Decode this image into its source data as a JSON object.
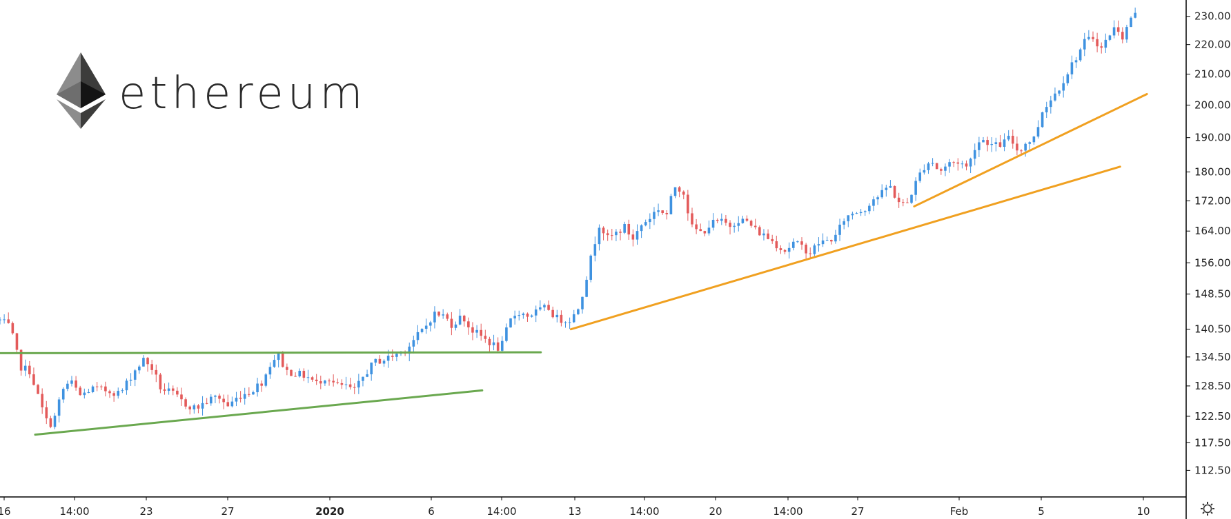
{
  "brand": {
    "wordmark": "ethereum",
    "logo_icon": "ethereum-diamond-icon"
  },
  "colors": {
    "up": "#3f92e0",
    "down": "#e35a5a",
    "support_green": "#6aa84f",
    "trend_orange": "#f0a020",
    "axis": "#000000",
    "text": "#222222"
  },
  "settings_icon": "gear-icon",
  "chart_data": {
    "type": "candlestick",
    "title": "",
    "scale": "log",
    "ylim": [
      108,
      236
    ],
    "x_ticks": [
      {
        "label": "16",
        "bold": false
      },
      {
        "label": "14:00",
        "bold": false
      },
      {
        "label": "23",
        "bold": false
      },
      {
        "label": "27",
        "bold": false
      },
      {
        "label": "2020",
        "bold": true
      },
      {
        "label": "6",
        "bold": false
      },
      {
        "label": "14:00",
        "bold": false
      },
      {
        "label": "13",
        "bold": false
      },
      {
        "label": "14:00",
        "bold": false
      },
      {
        "label": "20",
        "bold": false
      },
      {
        "label": "14:00",
        "bold": false
      },
      {
        "label": "27",
        "bold": false
      },
      {
        "label": "Feb",
        "bold": false
      },
      {
        "label": "5",
        "bold": false
      },
      {
        "label": "10",
        "bold": false
      }
    ],
    "y_ticks": [
      "230.00",
      "220.00",
      "210.00",
      "200.00",
      "190.00",
      "180.00",
      "172.00",
      "164.00",
      "156.00",
      "148.50",
      "140.50",
      "134.50",
      "128.50",
      "122.50",
      "117.50",
      "112.50"
    ],
    "price_path": [
      [
        0.0,
        142.5
      ],
      [
        0.6,
        141.0
      ],
      [
        1.2,
        132.5
      ],
      [
        1.8,
        131.5
      ],
      [
        2.4,
        125.0
      ],
      [
        2.9,
        120.5
      ],
      [
        3.3,
        122.5
      ],
      [
        3.7,
        127.5
      ],
      [
        4.2,
        129.5
      ],
      [
        4.8,
        126.5
      ],
      [
        5.5,
        128.0
      ],
      [
        6.5,
        127.5
      ],
      [
        7.2,
        127.0
      ],
      [
        8.0,
        131.5
      ],
      [
        8.6,
        134.0
      ],
      [
        9.1,
        132.0
      ],
      [
        9.6,
        128.0
      ],
      [
        10.3,
        127.0
      ],
      [
        11.0,
        125.0
      ],
      [
        11.7,
        124.0
      ],
      [
        12.4,
        125.5
      ],
      [
        13.0,
        126.5
      ],
      [
        13.6,
        124.5
      ],
      [
        14.3,
        126.5
      ],
      [
        15.0,
        127.5
      ],
      [
        15.7,
        129.5
      ],
      [
        16.2,
        133.5
      ],
      [
        16.6,
        135.0
      ],
      [
        17.1,
        131.5
      ],
      [
        17.7,
        131.0
      ],
      [
        18.3,
        130.5
      ],
      [
        18.9,
        129.0
      ],
      [
        19.5,
        130.5
      ],
      [
        20.1,
        128.5
      ],
      [
        20.6,
        128.5
      ],
      [
        21.2,
        127.5
      ],
      [
        21.8,
        131.0
      ],
      [
        22.4,
        133.5
      ],
      [
        23.0,
        134.0
      ],
      [
        23.6,
        135.0
      ],
      [
        24.2,
        136.0
      ],
      [
        24.8,
        138.5
      ],
      [
        25.4,
        141.0
      ],
      [
        25.9,
        144.0
      ],
      [
        26.5,
        143.5
      ],
      [
        27.0,
        141.5
      ],
      [
        27.6,
        143.5
      ],
      [
        28.1,
        140.5
      ],
      [
        28.7,
        139.0
      ],
      [
        29.3,
        137.5
      ],
      [
        29.9,
        136.0
      ],
      [
        30.4,
        142.0
      ],
      [
        30.9,
        144.5
      ],
      [
        31.5,
        143.5
      ],
      [
        32.1,
        144.5
      ],
      [
        32.7,
        145.5
      ],
      [
        33.2,
        143.0
      ],
      [
        33.7,
        142.5
      ],
      [
        34.2,
        143.0
      ],
      [
        34.6,
        146.0
      ],
      [
        35.0,
        152.0
      ],
      [
        35.4,
        159.0
      ],
      [
        35.8,
        166.0
      ],
      [
        36.3,
        162.0
      ],
      [
        36.8,
        163.5
      ],
      [
        37.3,
        165.0
      ],
      [
        37.8,
        162.0
      ],
      [
        38.3,
        165.5
      ],
      [
        38.8,
        167.5
      ],
      [
        39.3,
        170.0
      ],
      [
        39.8,
        168.0
      ],
      [
        40.3,
        176.0
      ],
      [
        40.8,
        175.0
      ],
      [
        41.3,
        165.0
      ],
      [
        41.9,
        163.5
      ],
      [
        42.5,
        166.0
      ],
      [
        43.0,
        166.5
      ],
      [
        43.6,
        165.5
      ],
      [
        44.1,
        167.0
      ],
      [
        44.6,
        166.5
      ],
      [
        45.2,
        164.0
      ],
      [
        45.8,
        162.5
      ],
      [
        46.4,
        160.5
      ],
      [
        46.9,
        159.0
      ],
      [
        47.4,
        161.0
      ],
      [
        47.9,
        160.0
      ],
      [
        48.4,
        158.5
      ],
      [
        48.9,
        161.0
      ],
      [
        49.4,
        161.5
      ],
      [
        49.9,
        162.5
      ],
      [
        50.4,
        167.0
      ],
      [
        51.0,
        169.0
      ],
      [
        51.6,
        169.5
      ],
      [
        52.1,
        172.5
      ],
      [
        52.6,
        173.5
      ],
      [
        53.1,
        176.5
      ],
      [
        53.6,
        172.0
      ],
      [
        54.1,
        170.5
      ],
      [
        54.6,
        176.0
      ],
      [
        55.1,
        181.0
      ],
      [
        55.6,
        183.5
      ],
      [
        56.1,
        180.0
      ],
      [
        56.7,
        182.5
      ],
      [
        57.3,
        183.0
      ],
      [
        57.8,
        181.0
      ],
      [
        58.3,
        188.5
      ],
      [
        58.8,
        189.5
      ],
      [
        59.3,
        187.5
      ],
      [
        59.8,
        188.0
      ],
      [
        60.3,
        190.0
      ],
      [
        60.8,
        186.0
      ],
      [
        61.3,
        188.5
      ],
      [
        61.8,
        190.0
      ],
      [
        62.3,
        199.0
      ],
      [
        62.8,
        202.0
      ],
      [
        63.3,
        206.0
      ],
      [
        63.8,
        211.0
      ],
      [
        64.3,
        216.0
      ],
      [
        64.8,
        221.0
      ],
      [
        65.3,
        222.5
      ],
      [
        65.8,
        218.5
      ],
      [
        66.3,
        224.0
      ],
      [
        66.7,
        226.5
      ],
      [
        67.1,
        222.0
      ],
      [
        67.5,
        229.5
      ],
      [
        67.8,
        230.5
      ]
    ],
    "x_span_days": [
      0,
      68
    ],
    "trendlines": [
      {
        "name": "support",
        "color": "green",
        "from": [
          0.0,
          135.3
        ],
        "to": [
          32.3,
          135.5
        ]
      },
      {
        "name": "support",
        "color": "green",
        "from": [
          2.1,
          119.0
        ],
        "to": [
          28.8,
          127.6
        ]
      },
      {
        "name": "trend",
        "color": "orange",
        "from": [
          34.1,
          140.5
        ],
        "to": [
          66.9,
          181.5
        ]
      },
      {
        "name": "trend",
        "color": "orange",
        "from": [
          54.6,
          170.5
        ],
        "to": [
          68.5,
          203.5
        ]
      }
    ]
  }
}
